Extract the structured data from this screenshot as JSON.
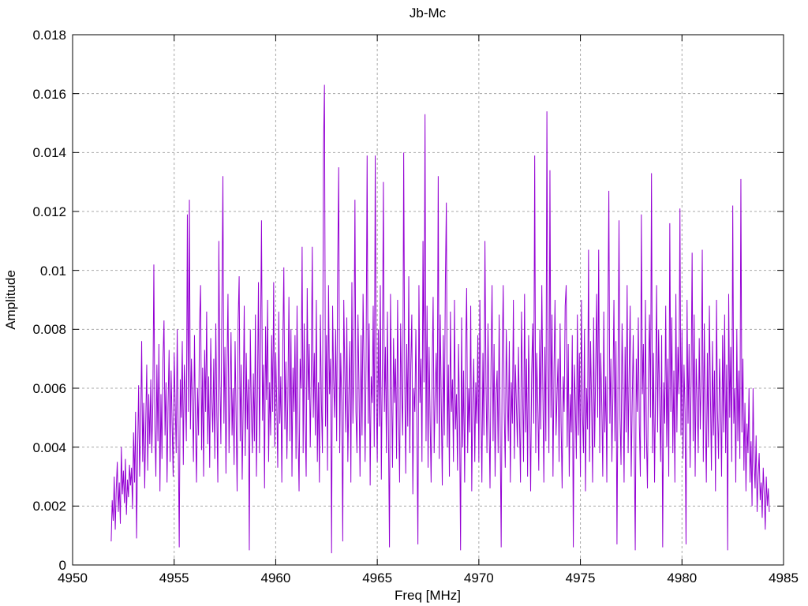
{
  "chart_data": {
    "type": "line",
    "title": "Jb-Mc",
    "xlabel": "Freq [MHz]",
    "ylabel": "Amplitude",
    "xlim": [
      4950,
      4985
    ],
    "ylim": [
      0,
      0.018
    ],
    "xticks": [
      {
        "value": 4950,
        "label": "4950"
      },
      {
        "value": 4955,
        "label": "4955"
      },
      {
        "value": 4960,
        "label": "4960"
      },
      {
        "value": 4965,
        "label": "4965"
      },
      {
        "value": 4970,
        "label": "4970"
      },
      {
        "value": 4975,
        "label": "4975"
      },
      {
        "value": 4980,
        "label": "4980"
      },
      {
        "value": 4985,
        "label": "4985"
      }
    ],
    "yticks": [
      {
        "value": 0,
        "label": "0"
      },
      {
        "value": 0.002,
        "label": "0.002"
      },
      {
        "value": 0.004,
        "label": "0.004"
      },
      {
        "value": 0.006,
        "label": "0.006"
      },
      {
        "value": 0.008,
        "label": "0.008"
      },
      {
        "value": 0.01,
        "label": "0.01"
      },
      {
        "value": 0.012,
        "label": "0.012"
      },
      {
        "value": 0.014,
        "label": "0.014"
      },
      {
        "value": 0.016,
        "label": "0.016"
      },
      {
        "value": 0.018,
        "label": "0.018"
      }
    ],
    "grid": true,
    "legend": "none",
    "colors": {
      "line": "#9400d3",
      "grid": "#a8a8a8",
      "border": "#000000",
      "text": "#000000",
      "background": "#ffffff"
    },
    "notable_peaks": [
      {
        "freq": 4954.0,
        "amp": 0.0102
      },
      {
        "freq": 4955.75,
        "amp": 0.0124
      },
      {
        "freq": 4957.4,
        "amp": 0.0132
      },
      {
        "freq": 4959.3,
        "amp": 0.0117
      },
      {
        "freq": 4962.4,
        "amp": 0.0163
      },
      {
        "freq": 4963.1,
        "amp": 0.0135
      },
      {
        "freq": 4964.5,
        "amp": 0.0139
      },
      {
        "freq": 4964.9,
        "amp": 0.0139
      },
      {
        "freq": 4966.3,
        "amp": 0.014
      },
      {
        "freq": 4967.35,
        "amp": 0.0153
      },
      {
        "freq": 4972.75,
        "amp": 0.0139
      },
      {
        "freq": 4973.35,
        "amp": 0.0154
      },
      {
        "freq": 4976.4,
        "amp": 0.0127
      },
      {
        "freq": 4978.5,
        "amp": 0.0133
      },
      {
        "freq": 4979.9,
        "amp": 0.0121
      },
      {
        "freq": 4982.5,
        "amp": 0.0122
      },
      {
        "freq": 4982.9,
        "amp": 0.0131
      }
    ],
    "series": [
      {
        "name": "Jb-Mc",
        "x_start": 4951.9,
        "x_step": 0.05,
        "value_unit": 0.0001,
        "values": [
          8,
          22,
          15,
          30,
          12,
          26,
          35,
          18,
          28,
          14,
          40,
          24,
          32,
          21,
          36,
          17,
          29,
          23,
          34,
          27,
          33,
          19,
          45,
          28,
          52,
          9,
          38,
          61,
          30,
          46,
          76,
          35,
          55,
          26,
          48,
          68,
          32,
          58,
          41,
          63,
          38,
          55,
          102,
          47,
          30,
          68,
          42,
          75,
          25,
          58,
          36,
          70,
          83,
          44,
          62,
          28,
          54,
          73,
          35,
          66,
          48,
          30,
          72,
          55,
          38,
          80,
          45,
          6,
          63,
          50,
          76,
          34,
          68,
          58,
          42,
          119,
          52,
          124,
          46,
          70,
          55,
          35,
          78,
          48,
          28,
          60,
          44,
          82,
          95,
          39,
          67,
          30,
          73,
          52,
          86,
          41,
          64,
          33,
          77,
          57,
          45,
          70,
          36,
          82,
          52,
          28,
          110,
          63,
          41,
          88,
          132,
          48,
          74,
          31,
          66,
          92,
          38,
          58,
          79,
          44,
          60,
          34,
          76,
          50,
          25,
          83,
          98,
          42,
          68,
          29,
          55,
          88,
          37,
          72,
          46,
          63,
          5,
          80,
          53,
          38,
          65,
          42,
          85,
          30,
          58,
          96,
          38,
          74,
          117,
          49,
          68,
          26,
          81,
          56,
          90,
          35,
          62,
          44,
          78,
          52,
          96,
          40,
          72,
          55,
          33,
          86,
          48,
          64,
          28,
          75,
          101,
          46,
          69,
          36,
          58,
          91,
          42,
          80,
          30,
          67,
          52,
          78,
          36,
          88,
          45,
          25,
          70,
          60,
          108,
          38,
          82,
          48,
          30,
          94,
          56,
          75,
          40,
          65,
          108,
          50,
          72,
          44,
          90,
          35,
          62,
          28,
          85,
          55,
          38,
          141,
          163,
          47,
          78,
          32,
          95,
          58,
          70,
          4,
          88,
          63,
          50,
          80,
          42,
          101,
          135,
          38,
          72,
          55,
          8,
          90,
          65,
          45,
          84,
          35,
          58,
          76,
          28,
          96,
          48,
          68,
          124,
          52,
          38,
          85,
          60,
          30,
          78,
          44,
          92,
          66,
          35,
          70,
          139,
          48,
          82,
          27,
          64,
          55,
          88,
          40,
          139,
          58,
          35,
          80,
          47,
          95,
          29,
          68,
          130,
          52,
          74,
          38,
          86,
          45,
          6,
          92,
          60,
          33,
          77,
          55,
          70,
          36,
          90,
          50,
          28,
          82,
          58,
          44,
          140,
          65,
          31,
          75,
          47,
          98,
          38,
          68,
          85,
          24,
          60,
          52,
          80,
          45,
          7,
          95,
          55,
          70,
          35,
          110,
          62,
          153,
          42,
          88,
          33,
          74,
          50,
          28,
          66,
          91,
          38,
          58,
          72,
          48,
          132,
          36,
          85,
          55,
          27,
          78,
          44,
          95,
          123,
          40,
          68,
          30,
          86,
          52,
          63,
          35,
          90,
          46,
          58,
          32,
          75,
          50,
          5,
          84,
          40,
          66,
          28,
          72,
          94,
          38,
          60,
          45,
          88,
          25,
          55,
          70,
          35,
          62,
          48,
          78,
          35,
          90,
          55,
          28,
          72,
          44,
          110,
          62,
          38,
          82,
          50,
          26,
          68,
          95,
          42,
          75,
          30,
          58,
          66,
          38,
          85,
          45,
          6,
          70,
          95,
          52,
          33,
          80,
          58,
          42,
          76,
          28,
          62,
          48,
          90,
          36,
          68,
          54,
          40,
          74,
          50,
          28,
          86,
          60,
          35,
          92,
          45,
          70,
          30,
          78,
          55,
          25,
          65,
          82,
          48,
          139,
          38,
          72,
          55,
          32,
          80,
          46,
          95,
          60,
          28,
          74,
          42,
          154,
          68,
          38,
          134,
          50,
          85,
          30,
          66,
          90,
          44,
          58,
          70,
          35,
          82,
          48,
          26,
          64,
          52,
          88,
          95,
          40,
          75,
          30,
          58,
          45,
          78,
          6,
          68,
          55,
          36,
          85,
          44,
          72,
          30,
          90,
          52,
          38,
          80,
          25,
          60,
          46,
          107,
          35,
          76,
          55,
          28,
          84,
          40,
          66,
          92,
          50,
          107,
          38,
          72,
          55,
          30,
          86,
          45,
          64,
          28,
          80,
          127,
          48,
          70,
          35,
          58,
          90,
          42,
          76,
          7,
          62,
          117,
          50,
          34,
          82,
          60,
          28,
          74,
          45,
          95,
          38,
          66,
          88,
          30,
          55,
          78,
          42,
          5,
          70,
          52,
          84,
          48,
          30,
          119,
          58,
          75,
          36,
          90,
          44,
          26,
          66,
          85,
          50,
          133,
          38,
          72,
          28,
          60,
          95,
          45,
          80,
          55,
          35,
          78,
          6,
          62,
          48,
          88,
          40,
          70,
          30,
          116,
          52,
          84,
          38,
          66,
          28,
          92,
          45,
          74,
          58,
          121,
          44,
          80,
          36,
          68,
          52,
          7,
          90,
          48,
          75,
          33,
          62,
          106,
          42,
          85,
          30,
          70,
          55,
          38,
          77,
          46,
          64,
          107,
          35,
          82,
          50,
          28,
          72,
          40,
          88,
          58,
          32,
          76,
          44,
          66,
          25,
          90,
          52,
          36,
          70,
          55,
          30,
          78,
          45,
          85,
          38,
          68,
          5,
          92,
          50,
          74,
          35,
          122,
          48,
          60,
          28,
          80,
          42,
          66,
          36,
          131,
          45,
          70,
          32,
          55,
          25,
          48,
          38,
          60,
          28,
          42,
          20,
          60,
          35,
          26,
          44,
          18,
          30,
          38,
          22,
          28,
          16,
          33,
          24,
          12,
          30,
          20,
          26,
          18
        ]
      }
    ]
  }
}
